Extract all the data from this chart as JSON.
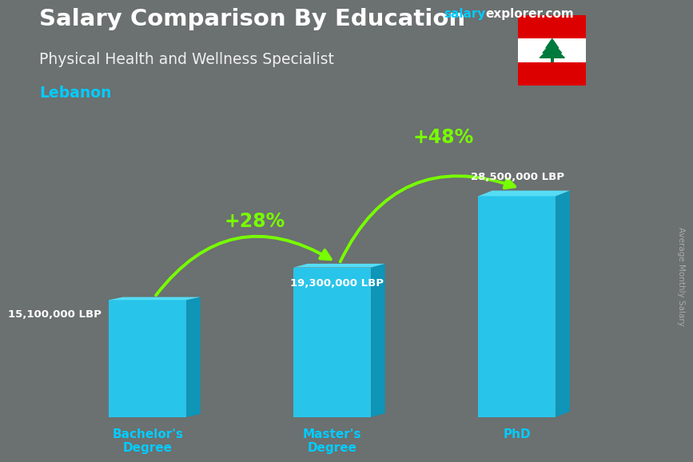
{
  "title": "Salary Comparison By Education",
  "subtitle": "Physical Health and Wellness Specialist",
  "country": "Lebanon",
  "ylabel": "Average Monthly Salary",
  "categories": [
    "Bachelor's\nDegree",
    "Master's\nDegree",
    "PhD"
  ],
  "values": [
    15100000,
    19300000,
    28500000
  ],
  "value_labels": [
    "15,100,000 LBP",
    "19,300,000 LBP",
    "28,500,000 LBP"
  ],
  "bar_front_color": "#29c4ea",
  "bar_top_color": "#55ddf5",
  "bar_side_color": "#0e95b8",
  "pct_labels": [
    "+28%",
    "+48%"
  ],
  "pct_color": "#77ff00",
  "arrow_color": "#77ff00",
  "title_color": "#ffffff",
  "subtitle_color": "#f0f0f0",
  "country_color": "#00ccff",
  "value_label_color": "#ffffff",
  "xtick_color": "#00ccff",
  "site_salary_color": "#00ccff",
  "site_explorer_color": "#ffffff",
  "ylabel_color": "#aaaaaa",
  "bg_color": "#6b7070",
  "bar_width": 0.42,
  "ylim": [
    0,
    35000000
  ],
  "flag_red": "#dd0000",
  "flag_white": "#ffffff",
  "flag_green": "#007a3d"
}
